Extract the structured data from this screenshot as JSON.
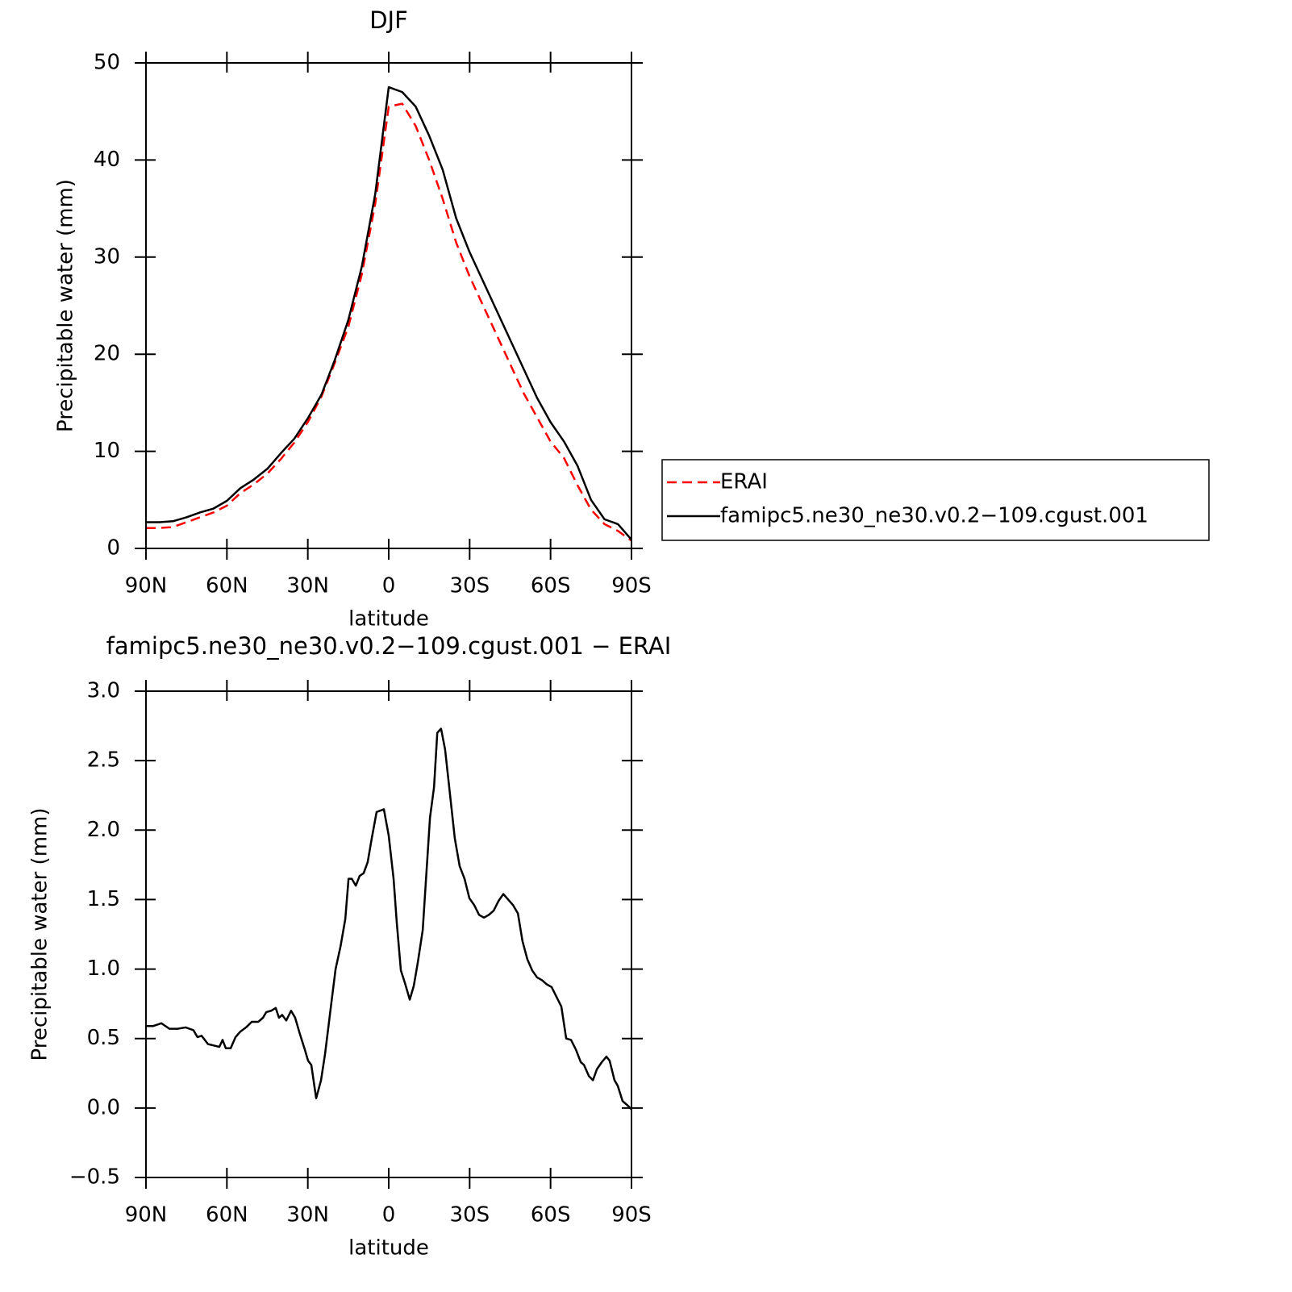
{
  "chart_data": [
    {
      "type": "line",
      "title": "DJF",
      "xlabel": "latitude",
      "ylabel": "Precipitable water (mm)",
      "x": [
        90,
        85,
        80,
        75,
        70,
        65,
        60,
        55,
        50,
        45,
        40,
        35,
        30,
        25,
        20,
        15,
        10,
        5,
        0,
        -5,
        -10,
        -15,
        -20,
        -25,
        -30,
        -35,
        -40,
        -45,
        -50,
        -55,
        -60,
        -65,
        -70,
        -75,
        -80,
        -85,
        -90
      ],
      "series": [
        {
          "name": "ERAI",
          "color": "#ff0000",
          "style": "dashed",
          "values": [
            2.1,
            2.1,
            2.2,
            2.7,
            3.2,
            3.7,
            4.4,
            5.7,
            6.6,
            7.7,
            9.2,
            10.9,
            13,
            15.6,
            19.1,
            22.8,
            28.2,
            35.5,
            45.5,
            45.8,
            43.5,
            40,
            36,
            31.5,
            28,
            25,
            22,
            19,
            16,
            13.5,
            11,
            9.3,
            6.5,
            4,
            2.5,
            1.8,
            0.8
          ]
        },
        {
          "name": "famipc5.ne30_ne30.v0.2−109.cgust.001",
          "color": "#000000",
          "style": "solid",
          "values": [
            2.7,
            2.7,
            2.8,
            3.2,
            3.7,
            4.1,
            4.9,
            6.2,
            7.1,
            8.2,
            9.8,
            11.3,
            13.4,
            15.8,
            19.4,
            23.5,
            29,
            36.5,
            47.5,
            47,
            45.5,
            42.5,
            39,
            34,
            30.5,
            27.5,
            24.5,
            21.5,
            18.5,
            15.5,
            13,
            11,
            8.5,
            5,
            3,
            2.5,
            0.9
          ]
        }
      ],
      "xlim": [
        90,
        -90
      ],
      "xticks": [
        {
          "value": 90,
          "label": "90N"
        },
        {
          "value": 60,
          "label": "60N"
        },
        {
          "value": 30,
          "label": "30N"
        },
        0,
        {
          "value": -30,
          "label": "30S"
        },
        {
          "value": -60,
          "label": "60S"
        },
        {
          "value": -90,
          "label": "90S"
        }
      ],
      "ylim": [
        0,
        50
      ],
      "yticks": [
        0,
        10,
        20,
        30,
        40,
        50
      ],
      "legend": "right"
    },
    {
      "type": "line",
      "title": "famipc5.ne30_ne30.v0.2−109.cgust.001 − ERAI",
      "xlabel": "latitude",
      "ylabel": "Precipitable water (mm)",
      "x": [
        90,
        87.3,
        84.3,
        81.3,
        78.3,
        75.3,
        72.4,
        70.9,
        69.4,
        67.0,
        64.9,
        62.8,
        61.6,
        60.4,
        58.6,
        56.8,
        55.0,
        52.9,
        50.8,
        48.4,
        46.6,
        45.4,
        43.6,
        41.9,
        40.7,
        39.5,
        38.0,
        36.2,
        34.7,
        32.9,
        31.1,
        29.9,
        28.7,
        26.9,
        25.1,
        23.6,
        21.5,
        19.7,
        17.9,
        16.1,
        14.9,
        13.7,
        12.2,
        10.8,
        9.3,
        7.8,
        6.3,
        4.5,
        1.8,
        0.0,
        -1.8,
        -3.0,
        -4.5,
        -6.0,
        -7.8,
        -9.3,
        -10.8,
        -12.6,
        -13.8,
        -15.3,
        -16.8,
        -18.0,
        -19.4,
        -20.9,
        -22.7,
        -24.5,
        -26.3,
        -28.1,
        -29.9,
        -31.7,
        -33.5,
        -35.3,
        -37.1,
        -38.9,
        -40.7,
        -42.5,
        -44.3,
        -46.1,
        -47.9,
        -49.6,
        -51.4,
        -53.2,
        -55.0,
        -56.8,
        -58.6,
        -60.4,
        -62.2,
        -64.0,
        -65.8,
        -67.6,
        -69.4,
        -71.2,
        -72.4,
        -74.2,
        -75.7,
        -77.2,
        -79.0,
        -80.7,
        -81.9,
        -83.7,
        -84.9,
        -86.7,
        -88.5,
        -90.0
      ],
      "values": [
        0.59,
        0.59,
        0.61,
        0.57,
        0.57,
        0.58,
        0.56,
        0.51,
        0.52,
        0.46,
        0.45,
        0.44,
        0.49,
        0.43,
        0.43,
        0.51,
        0.55,
        0.58,
        0.62,
        0.62,
        0.65,
        0.69,
        0.7,
        0.72,
        0.65,
        0.67,
        0.63,
        0.7,
        0.65,
        0.53,
        0.42,
        0.34,
        0.31,
        0.07,
        0.2,
        0.39,
        0.72,
        1.0,
        1.16,
        1.36,
        1.65,
        1.65,
        1.6,
        1.67,
        1.69,
        1.77,
        1.94,
        2.13,
        2.15,
        1.96,
        1.65,
        1.33,
        0.99,
        0.9,
        0.78,
        0.88,
        1.05,
        1.28,
        1.64,
        2.09,
        2.31,
        2.7,
        2.73,
        2.58,
        2.26,
        1.94,
        1.74,
        1.65,
        1.51,
        1.46,
        1.39,
        1.37,
        1.39,
        1.42,
        1.49,
        1.54,
        1.5,
        1.46,
        1.4,
        1.2,
        1.07,
        0.99,
        0.94,
        0.92,
        0.89,
        0.87,
        0.8,
        0.73,
        0.5,
        0.49,
        0.42,
        0.33,
        0.31,
        0.23,
        0.2,
        0.28,
        0.33,
        0.37,
        0.34,
        0.2,
        0.16,
        0.05,
        0.02,
        -0.01
      ],
      "color": "#000000",
      "xlim": [
        90,
        -90
      ],
      "xticks": [
        {
          "value": 90,
          "label": "90N"
        },
        {
          "value": 60,
          "label": "60N"
        },
        {
          "value": 30,
          "label": "30N"
        },
        0,
        {
          "value": -30,
          "label": "30S"
        },
        {
          "value": -60,
          "label": "60S"
        },
        {
          "value": -90,
          "label": "90S"
        }
      ],
      "ylim": [
        -0.5,
        3
      ],
      "yticks": [
        {
          "value": -0.5,
          "label": "−0.5"
        },
        {
          "value": 0,
          "label": "0.0"
        },
        0.5,
        {
          "value": 1,
          "label": "1.0"
        },
        1.5,
        {
          "value": 2,
          "label": "2.0"
        },
        2.5,
        {
          "value": 3,
          "label": "3.0"
        }
      ]
    }
  ]
}
